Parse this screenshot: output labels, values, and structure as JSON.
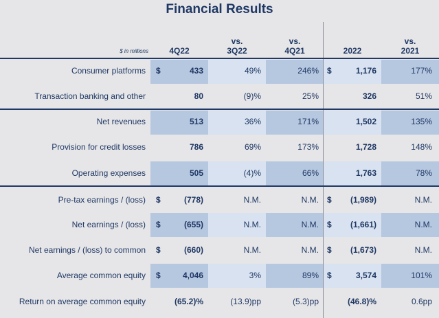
{
  "title": "Financial Results",
  "units": "$ in millions",
  "headers": [
    {
      "l1": "",
      "l2": "4Q22"
    },
    {
      "l1": "vs.",
      "l2": "3Q22"
    },
    {
      "l1": "vs.",
      "l2": "4Q21"
    },
    {
      "l1": "",
      "l2": "2022"
    },
    {
      "l1": "vs.",
      "l2": "2021"
    }
  ],
  "rows": [
    {
      "label": "Consumer platforms",
      "s1": "$",
      "v1": "433",
      "v2": "49%",
      "v3": "246%",
      "s4": "$",
      "v4": "1,176",
      "v5": "177%"
    },
    {
      "label": "Transaction banking and other",
      "s1": "",
      "v1": "80",
      "v2": "(9)%",
      "v3": "25%",
      "s4": "",
      "v4": "326",
      "v5": "51%"
    },
    {
      "label": "Net revenues",
      "s1": "",
      "v1": "513",
      "v2": "36%",
      "v3": "171%",
      "s4": "",
      "v4": "1,502",
      "v5": "135%"
    },
    {
      "label": "Provision for credit losses",
      "s1": "",
      "v1": "786",
      "v2": "69%",
      "v3": "173%",
      "s4": "",
      "v4": "1,728",
      "v5": "148%"
    },
    {
      "label": "Operating expenses",
      "s1": "",
      "v1": "505",
      "v2": "(4)%",
      "v3": "66%",
      "s4": "",
      "v4": "1,763",
      "v5": "78%"
    },
    {
      "label": "Pre-tax earnings / (loss)",
      "s1": "$",
      "v1": "(778)",
      "v2": "N.M.",
      "v3": "N.M.",
      "s4": "$",
      "v4": "(1,989)",
      "v5": "N.M."
    },
    {
      "label": "Net earnings / (loss)",
      "s1": "$",
      "v1": "(655)",
      "v2": "N.M.",
      "v3": "N.M.",
      "s4": "$",
      "v4": "(1,661)",
      "v5": "N.M."
    },
    {
      "label": "Net earnings / (loss) to common",
      "s1": "$",
      "v1": "(660)",
      "v2": "N.M.",
      "v3": "N.M.",
      "s4": "$",
      "v4": "(1,673)",
      "v5": "N.M."
    },
    {
      "label": "Average common equity",
      "s1": "$",
      "v1": "4,046",
      "v2": "3%",
      "v3": "89%",
      "s4": "$",
      "v4": "3,574",
      "v5": "101%"
    },
    {
      "label": "Return on average common equity",
      "s1": "",
      "v1": "(65.2)%",
      "v2": "(13.9)pp",
      "v3": "(5.3)pp",
      "s4": "",
      "v4": "(46.8)%",
      "v5": "0.6pp"
    }
  ]
}
